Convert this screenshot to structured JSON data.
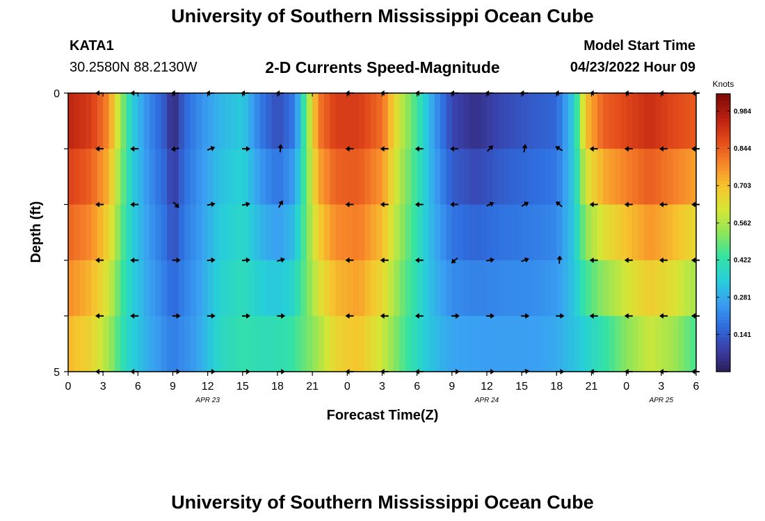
{
  "header": {
    "title": "University of Southern Mississippi Ocean Cube",
    "station": "KATA1",
    "coords": "30.2580N  88.2130W",
    "subtitle": "2-D Currents Speed-Magnitude",
    "model_start_label": "Model Start Time",
    "model_start_value": "04/23/2022 Hour 09"
  },
  "footer": {
    "title": "University of Southern Mississippi Ocean Cube"
  },
  "colors": {
    "stops": [
      "#2c1e57",
      "#3a3fa8",
      "#2f6fe0",
      "#3aa0f2",
      "#27d0d8",
      "#36e3a0",
      "#8ee55a",
      "#d6e636",
      "#f6c52e",
      "#f7852a",
      "#e24a1b",
      "#b81e10",
      "#7b0b06"
    ]
  },
  "chart_data": {
    "type": "heatmap",
    "x_label": "Forecast Time(Z)",
    "y_label": "Depth (ft)",
    "x_range": [
      0,
      54
    ],
    "y_range": [
      0,
      5
    ],
    "x_ticks": [
      0,
      3,
      6,
      9,
      12,
      15,
      18,
      21,
      24,
      27,
      30,
      33,
      36,
      39,
      42,
      45,
      48,
      51,
      54
    ],
    "x_tick_labels": [
      "0",
      "3",
      "6",
      "9",
      "12",
      "15",
      "18",
      "21",
      "0",
      "3",
      "6",
      "9",
      "12",
      "15",
      "18",
      "21",
      "0",
      "3",
      "6"
    ],
    "y_tick_labels": [
      "0",
      "5"
    ],
    "date_labels": [
      {
        "hour": 12,
        "label": "APR 23"
      },
      {
        "hour": 36,
        "label": "APR 24"
      },
      {
        "hour": 51,
        "label": "APR 25"
      }
    ],
    "colorbar": {
      "unit": "Knots",
      "min": 0.0,
      "max": 1.05,
      "ticks": [
        0.984,
        0.844,
        0.703,
        0.562,
        0.422,
        0.281,
        0.141
      ]
    },
    "speed_profile_surface": [
      {
        "hour": 0,
        "speed": 0.95
      },
      {
        "hour": 2,
        "speed": 0.9
      },
      {
        "hour": 3.5,
        "speed": 0.78
      },
      {
        "hour": 4.5,
        "speed": 0.55
      },
      {
        "hour": 5.5,
        "speed": 0.35
      },
      {
        "hour": 7,
        "speed": 0.22
      },
      {
        "hour": 8.5,
        "speed": 0.12
      },
      {
        "hour": 9,
        "speed": 0.02
      },
      {
        "hour": 10,
        "speed": 0.16
      },
      {
        "hour": 11.5,
        "speed": 0.24
      },
      {
        "hour": 13,
        "speed": 0.3
      },
      {
        "hour": 15,
        "speed": 0.34
      },
      {
        "hour": 16.5,
        "speed": 0.2
      },
      {
        "hour": 18,
        "speed": 0.11
      },
      {
        "hour": 19.5,
        "speed": 0.2
      },
      {
        "hour": 20.5,
        "speed": 0.5
      },
      {
        "hour": 21.5,
        "speed": 0.8
      },
      {
        "hour": 23,
        "speed": 0.9
      },
      {
        "hour": 25,
        "speed": 0.9
      },
      {
        "hour": 27,
        "speed": 0.82
      },
      {
        "hour": 28.5,
        "speed": 0.6
      },
      {
        "hour": 30,
        "speed": 0.44
      },
      {
        "hour": 31.5,
        "speed": 0.25
      },
      {
        "hour": 33,
        "speed": 0.1
      },
      {
        "hour": 35,
        "speed": 0.05
      },
      {
        "hour": 37,
        "speed": 0.1
      },
      {
        "hour": 40,
        "speed": 0.14
      },
      {
        "hour": 42,
        "speed": 0.16
      },
      {
        "hour": 43.5,
        "speed": 0.35
      },
      {
        "hour": 44.5,
        "speed": 0.7
      },
      {
        "hour": 46,
        "speed": 0.84
      },
      {
        "hour": 50,
        "speed": 0.93
      },
      {
        "hour": 52,
        "speed": 0.88
      },
      {
        "hour": 54,
        "speed": 0.85
      }
    ],
    "speed_profile_bottom": [
      {
        "hour": 0,
        "speed": 0.72
      },
      {
        "hour": 2,
        "speed": 0.66
      },
      {
        "hour": 3.5,
        "speed": 0.55
      },
      {
        "hour": 5,
        "speed": 0.38
      },
      {
        "hour": 7,
        "speed": 0.28
      },
      {
        "hour": 9,
        "speed": 0.2
      },
      {
        "hour": 11,
        "speed": 0.26
      },
      {
        "hour": 13,
        "speed": 0.38
      },
      {
        "hour": 15,
        "speed": 0.42
      },
      {
        "hour": 17,
        "speed": 0.4
      },
      {
        "hour": 19,
        "speed": 0.42
      },
      {
        "hour": 21,
        "speed": 0.52
      },
      {
        "hour": 23,
        "speed": 0.66
      },
      {
        "hour": 25,
        "speed": 0.7
      },
      {
        "hour": 27,
        "speed": 0.6
      },
      {
        "hour": 29,
        "speed": 0.45
      },
      {
        "hour": 31,
        "speed": 0.33
      },
      {
        "hour": 33,
        "speed": 0.27
      },
      {
        "hour": 36,
        "speed": 0.26
      },
      {
        "hour": 40,
        "speed": 0.26
      },
      {
        "hour": 42,
        "speed": 0.28
      },
      {
        "hour": 44,
        "speed": 0.34
      },
      {
        "hour": 46,
        "speed": 0.42
      },
      {
        "hour": 48,
        "speed": 0.52
      },
      {
        "hour": 50,
        "speed": 0.6
      },
      {
        "hour": 52,
        "speed": 0.55
      },
      {
        "hour": 54,
        "speed": 0.45
      }
    ],
    "vector_hours": [
      2.75,
      5.75,
      9.25,
      12.25,
      15.25,
      18.25,
      24.25,
      27.25,
      30.25,
      33.25,
      36.25,
      39.25,
      42.25,
      45.25,
      48.25,
      51.25,
      54
    ],
    "vector_depths": [
      0,
      1,
      2,
      3,
      4,
      5
    ],
    "vector_directions_deg": [
      [
        180,
        180,
        180,
        180,
        180,
        180,
        180,
        180,
        180,
        180,
        180,
        180,
        180,
        180,
        180,
        180,
        180
      ],
      [
        180,
        180,
        190,
        20,
        0,
        85,
        180,
        180,
        180,
        180,
        45,
        80,
        150,
        180,
        180,
        180,
        180
      ],
      [
        180,
        180,
        315,
        10,
        10,
        60,
        180,
        180,
        180,
        180,
        25,
        30,
        140,
        180,
        180,
        180,
        180
      ],
      [
        180,
        180,
        0,
        5,
        5,
        15,
        180,
        180,
        180,
        220,
        10,
        20,
        85,
        180,
        180,
        180,
        180
      ],
      [
        180,
        180,
        0,
        0,
        0,
        0,
        180,
        180,
        180,
        0,
        0,
        0,
        0,
        180,
        180,
        180,
        180
      ],
      [
        180,
        180,
        0,
        0,
        0,
        0,
        180,
        180,
        180,
        0,
        0,
        10,
        0,
        180,
        180,
        180,
        180
      ]
    ]
  }
}
